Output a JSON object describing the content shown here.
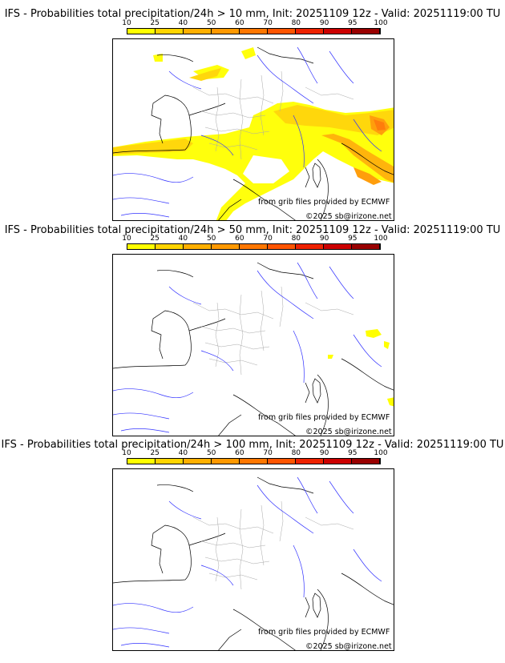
{
  "colorbar": {
    "ticks": [
      "10",
      "25",
      "40",
      "50",
      "60",
      "70",
      "80",
      "90",
      "95",
      "100"
    ],
    "colors": [
      "#ffff00",
      "#ffd500",
      "#ffb000",
      "#ff9900",
      "#ff7700",
      "#ff5500",
      "#ee2200",
      "#cc0000",
      "#990000",
      "#660000"
    ]
  },
  "credit": "from grib files provided by ECMWF",
  "copyright": "©2025 sb@irizone.net",
  "panels": [
    {
      "title": "IFS - Probabilities total precipitation/24h > 10 mm, Init: 20251109 12z - Valid: 20251119:00 TU"
    },
    {
      "title": "IFS - Probabilities total precipitation/24h > 50 mm, Init: 20251109 12z - Valid: 20251119:00 TU"
    },
    {
      "title": "IFS - Probabilities total precipitation/24h > 100 mm, Init: 20251109 12z - Valid: 20251119:00 TU"
    }
  ]
}
